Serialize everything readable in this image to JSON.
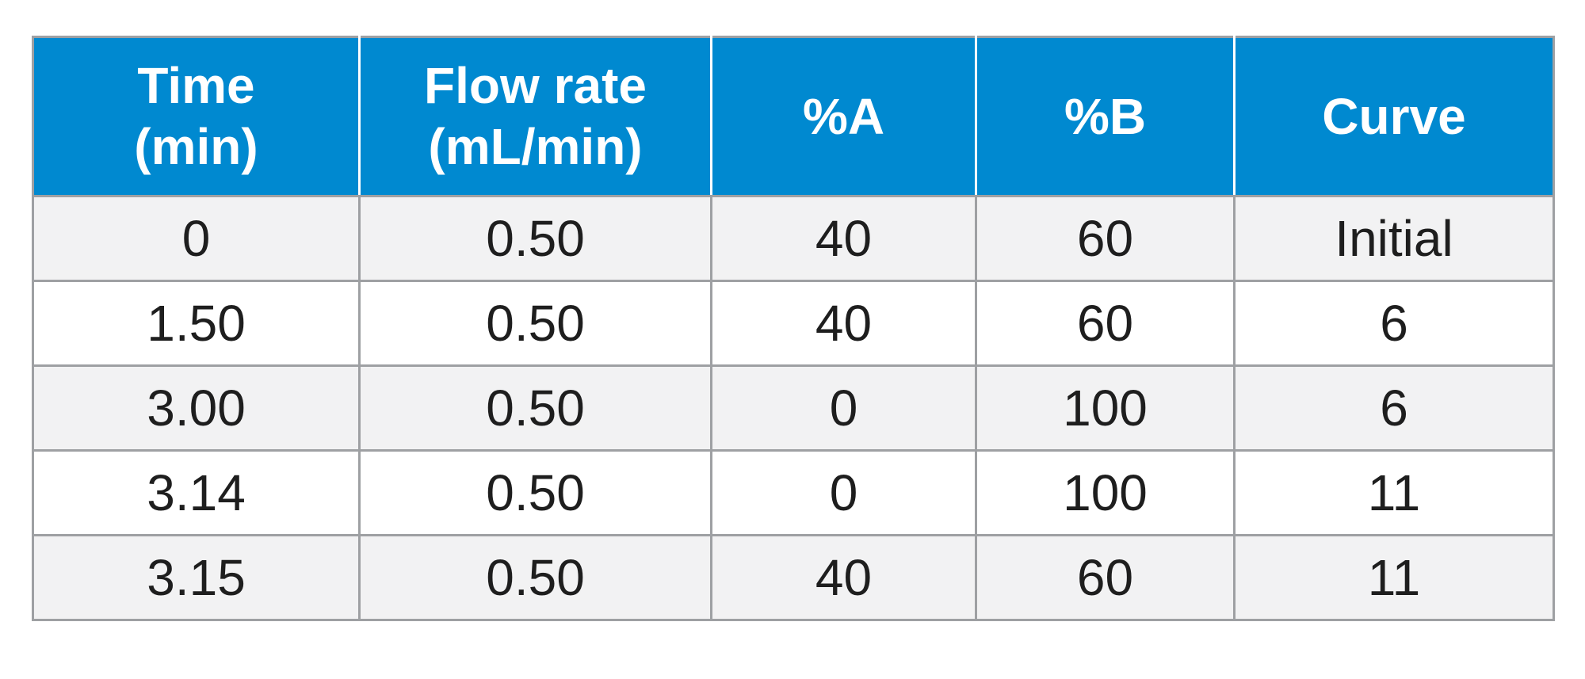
{
  "table": {
    "header": [
      {
        "line1": "Time",
        "line2": "(min)"
      },
      {
        "line1": "Flow rate",
        "line2": "(mL/min)"
      },
      {
        "line1": "%A",
        "line2": ""
      },
      {
        "line1": "%B",
        "line2": ""
      },
      {
        "line1": "Curve",
        "line2": ""
      }
    ],
    "rows": [
      [
        "0",
        "0.50",
        "40",
        "60",
        "Initial"
      ],
      [
        "1.50",
        "0.50",
        "40",
        "60",
        "6"
      ],
      [
        "3.00",
        "0.50",
        "0",
        "100",
        "6"
      ],
      [
        "3.14",
        "0.50",
        "0",
        "100",
        "11"
      ],
      [
        "3.15",
        "0.50",
        "40",
        "60",
        "11"
      ]
    ]
  },
  "colors": {
    "header_bg": "#0089d0",
    "header_text": "#ffffff",
    "row_alt_bg": "#f2f2f3",
    "grid": "#9ea0a3",
    "text": "#1e1e1e"
  }
}
